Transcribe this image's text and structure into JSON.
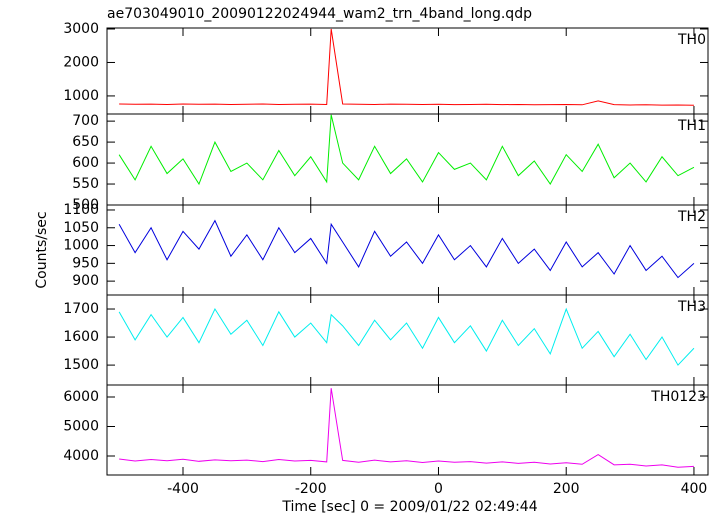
{
  "title": "ae703049010_20090122024944_wam2_trn_4band_long.qdp",
  "x_label": "Time [sec] 0 = 2009/01/22 02:49:44",
  "y_label": "Counts/sec",
  "chart_data": [
    {
      "type": "line",
      "label": "TH0",
      "color": "#ff0000",
      "x": [
        -500,
        -475,
        -450,
        -425,
        -400,
        -375,
        -350,
        -325,
        -300,
        -275,
        -250,
        -225,
        -200,
        -175,
        -168,
        -150,
        -125,
        -100,
        -75,
        -50,
        -25,
        0,
        25,
        50,
        75,
        100,
        125,
        150,
        175,
        200,
        225,
        250,
        275,
        300,
        325,
        350,
        375,
        400
      ],
      "values": [
        760,
        750,
        755,
        745,
        760,
        750,
        755,
        745,
        750,
        760,
        745,
        750,
        755,
        745,
        3000,
        760,
        750,
        745,
        755,
        750,
        745,
        750,
        740,
        745,
        750,
        740,
        745,
        735,
        740,
        745,
        735,
        850,
        740,
        730,
        735,
        725,
        730,
        720
      ],
      "xlim": [
        -519,
        422
      ],
      "xticks": [
        -400,
        -200,
        0,
        200,
        400
      ],
      "ylim": [
        460,
        3030
      ],
      "yticks": [
        1000,
        2000,
        3000
      ]
    },
    {
      "type": "line",
      "label": "TH1",
      "color": "#00ee00",
      "x": [
        -500,
        -475,
        -450,
        -425,
        -400,
        -375,
        -350,
        -325,
        -300,
        -275,
        -250,
        -225,
        -200,
        -175,
        -168,
        -150,
        -125,
        -100,
        -75,
        -50,
        -25,
        0,
        25,
        50,
        75,
        100,
        125,
        150,
        175,
        200,
        225,
        250,
        275,
        300,
        325,
        350,
        375,
        400
      ],
      "values": [
        620,
        560,
        640,
        575,
        610,
        550,
        650,
        580,
        600,
        560,
        630,
        570,
        615,
        555,
        715,
        600,
        560,
        640,
        575,
        610,
        555,
        625,
        585,
        600,
        560,
        640,
        570,
        605,
        550,
        620,
        580,
        645,
        565,
        600,
        555,
        615,
        570,
        590
      ],
      "xlim": [
        -519,
        422
      ],
      "xticks": [
        -400,
        -200,
        0,
        200,
        400
      ],
      "ylim": [
        500,
        717
      ],
      "yticks": [
        500,
        550,
        600,
        650,
        700
      ]
    },
    {
      "type": "line",
      "label": "TH2",
      "color": "#0000dd",
      "x": [
        -500,
        -475,
        -450,
        -425,
        -400,
        -375,
        -350,
        -325,
        -300,
        -275,
        -250,
        -225,
        -200,
        -175,
        -168,
        -150,
        -125,
        -100,
        -75,
        -50,
        -25,
        0,
        25,
        50,
        75,
        100,
        125,
        150,
        175,
        200,
        225,
        250,
        275,
        300,
        325,
        350,
        375,
        400
      ],
      "values": [
        1060,
        980,
        1050,
        960,
        1040,
        990,
        1070,
        970,
        1030,
        960,
        1050,
        980,
        1020,
        950,
        1060,
        1010,
        940,
        1040,
        970,
        1010,
        950,
        1030,
        960,
        1000,
        940,
        1020,
        950,
        990,
        930,
        1010,
        940,
        980,
        920,
        1000,
        930,
        970,
        910,
        950
      ],
      "xlim": [
        -519,
        422
      ],
      "xticks": [
        -400,
        -200,
        0,
        200,
        400
      ],
      "ylim": [
        861,
        1114
      ],
      "yticks": [
        900,
        950,
        1000,
        1050,
        1100
      ]
    },
    {
      "type": "line",
      "label": "TH3",
      "color": "#00eeee",
      "x": [
        -500,
        -475,
        -450,
        -425,
        -400,
        -375,
        -350,
        -325,
        -300,
        -275,
        -250,
        -225,
        -200,
        -175,
        -168,
        -150,
        -125,
        -100,
        -75,
        -50,
        -25,
        0,
        25,
        50,
        75,
        100,
        125,
        150,
        175,
        200,
        225,
        250,
        275,
        300,
        325,
        350,
        375,
        400
      ],
      "values": [
        1690,
        1590,
        1680,
        1600,
        1670,
        1580,
        1700,
        1610,
        1660,
        1570,
        1690,
        1600,
        1650,
        1580,
        1680,
        1640,
        1570,
        1660,
        1590,
        1650,
        1560,
        1670,
        1580,
        1640,
        1550,
        1660,
        1570,
        1630,
        1540,
        1700,
        1560,
        1620,
        1530,
        1610,
        1520,
        1600,
        1500,
        1560
      ],
      "xlim": [
        -519,
        422
      ],
      "xticks": [
        -400,
        -200,
        0,
        200,
        400
      ],
      "ylim": [
        1429,
        1750
      ],
      "yticks": [
        1500,
        1600,
        1700
      ]
    },
    {
      "type": "line",
      "label": "TH0123",
      "color": "#ee00ee",
      "x": [
        -500,
        -475,
        -450,
        -425,
        -400,
        -375,
        -350,
        -325,
        -300,
        -275,
        -250,
        -225,
        -200,
        -175,
        -168,
        -150,
        -125,
        -100,
        -75,
        -50,
        -25,
        0,
        25,
        50,
        75,
        100,
        125,
        150,
        175,
        200,
        225,
        250,
        275,
        300,
        325,
        350,
        375,
        400
      ],
      "values": [
        3900,
        3830,
        3880,
        3840,
        3890,
        3820,
        3870,
        3840,
        3860,
        3810,
        3880,
        3830,
        3850,
        3800,
        6300,
        3850,
        3790,
        3860,
        3800,
        3840,
        3780,
        3830,
        3790,
        3810,
        3760,
        3800,
        3750,
        3790,
        3730,
        3770,
        3720,
        4050,
        3700,
        3720,
        3660,
        3700,
        3620,
        3650
      ],
      "xlim": [
        -519,
        422
      ],
      "xticks": [
        -400,
        -200,
        0,
        200,
        400
      ],
      "ylim": [
        3356,
        6407
      ],
      "yticks": [
        4000,
        5000,
        6000
      ]
    }
  ]
}
